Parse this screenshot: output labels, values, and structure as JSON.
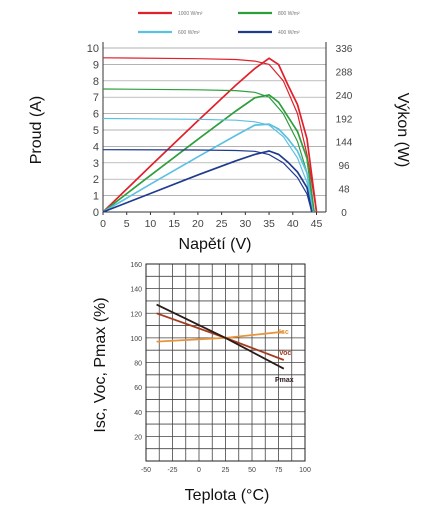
{
  "chart_data": [
    {
      "type": "line",
      "legend": [
        "1000 W/m²",
        "800 W/m²",
        "600 W/m²",
        "400 W/m²"
      ],
      "legend_placement": "top",
      "xlabel": "Napětí (V)",
      "ylabel_left": "Proud (A)",
      "ylabel_right": "Výkon (W)",
      "x_ticks": [
        "0",
        "5",
        "10",
        "15",
        "20",
        "25",
        "30",
        "35",
        "40",
        "45"
      ],
      "y_left_ticks": [
        "0",
        "1",
        "2",
        "3",
        "4",
        "5",
        "6",
        "7",
        "8",
        "9",
        "10"
      ],
      "y_right_ticks": [
        "0",
        "48",
        "96",
        "144",
        "192",
        "240",
        "288",
        "336"
      ],
      "xlim": [
        0,
        47
      ],
      "ylim_left": [
        0,
        10
      ],
      "ylim_right": [
        0,
        336
      ],
      "grid": "horizontal",
      "series": [
        {
          "name": "1000 W/m²",
          "color": "#e0202a",
          "current": {
            "x": [
              0,
              20,
              28,
              32,
              35,
              38,
              41,
              43,
              44,
              45
            ],
            "y": [
              9.4,
              9.35,
              9.3,
              9.2,
              9.0,
              8.0,
              6.0,
              3.5,
              1.8,
              0
            ]
          },
          "power": {
            "x": [
              0,
              10,
              20,
              28,
              32,
              35,
              37,
              39,
              41,
              43,
              45
            ],
            "y": [
              0,
              94,
              187,
              260,
              294,
              315,
              302,
              260,
              220,
              150,
              0
            ]
          }
        },
        {
          "name": "800 W/m²",
          "color": "#2e9e3c",
          "current": {
            "x": [
              0,
              20,
              28,
              32,
              35,
              38,
              41,
              43,
              44.5
            ],
            "y": [
              7.5,
              7.45,
              7.4,
              7.3,
              7.0,
              6.0,
              4.3,
              2.4,
              0
            ]
          },
          "power": {
            "x": [
              0,
              10,
              20,
              28,
              32,
              35,
              37,
              39,
              41,
              43,
              44.5
            ],
            "y": [
              0,
              75,
              149,
              207,
              234,
              240,
              225,
              195,
              165,
              110,
              0
            ]
          }
        },
        {
          "name": "600 W/m²",
          "color": "#5cc0e0",
          "current": {
            "x": [
              0,
              20,
              28,
              32,
              35,
              38,
              41,
              43,
              44.2
            ],
            "y": [
              5.7,
              5.65,
              5.6,
              5.5,
              5.3,
              4.6,
              3.3,
              1.8,
              0
            ]
          },
          "power": {
            "x": [
              0,
              10,
              20,
              28,
              32,
              35,
              37,
              39,
              41,
              43,
              44.2
            ],
            "y": [
              0,
              57,
              113,
              157,
              178,
              180,
              170,
              150,
              125,
              80,
              0
            ]
          }
        },
        {
          "name": "400 W/m²",
          "color": "#1f3a8f",
          "current": {
            "x": [
              0,
              20,
              28,
              32,
              35,
              38,
              41,
              43,
              44
            ],
            "y": [
              3.8,
              3.78,
              3.75,
              3.7,
              3.5,
              3.0,
              2.1,
              1.1,
              0
            ]
          },
          "power": {
            "x": [
              0,
              10,
              20,
              28,
              32,
              35,
              37,
              39,
              41,
              43,
              44
            ],
            "y": [
              0,
              38,
              76,
              105,
              118,
              125,
              118,
              102,
              82,
              50,
              0
            ]
          }
        }
      ]
    },
    {
      "type": "line",
      "xlabel": "Teplota (°C)",
      "ylabel": "Isc, Voc, Pmax (%)",
      "x_ticks": [
        "-50",
        "-25",
        "0",
        "25",
        "50",
        "75",
        "100"
      ],
      "y_ticks": [
        "20",
        "40",
        "60",
        "80",
        "100",
        "120",
        "140",
        "160"
      ],
      "xlim": [
        -50,
        100
      ],
      "ylim": [
        0,
        160
      ],
      "grid": "both",
      "series": [
        {
          "name": "Isc",
          "color": "#e8943a",
          "x": [
            -40,
            25,
            80
          ],
          "y": [
            97,
            100,
            105
          ]
        },
        {
          "name": "Voc",
          "color": "#a33b1f",
          "x": [
            -40,
            25,
            80
          ],
          "y": [
            120,
            100,
            82
          ]
        },
        {
          "name": "Pmax",
          "color": "#2a1a1a",
          "x": [
            -40,
            25,
            80
          ],
          "y": [
            127,
            100,
            75
          ]
        }
      ]
    }
  ]
}
